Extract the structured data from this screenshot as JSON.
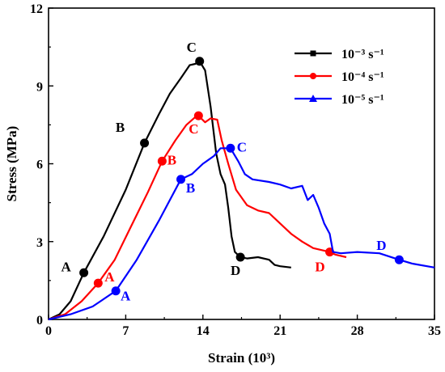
{
  "chart_data": {
    "type": "line",
    "xlabel": "Strain (10³)",
    "ylabel": "Stress (MPa)",
    "xlim": [
      0,
      35
    ],
    "ylim": [
      0,
      12
    ],
    "x_ticks": [
      "0",
      "7",
      "14",
      "21",
      "28",
      "35"
    ],
    "y_ticks": [
      "0",
      "3",
      "6",
      "9",
      "12"
    ],
    "grid": false,
    "legend_position": "top-right",
    "series": [
      {
        "name": "10⁻³ s⁻¹",
        "color": "#000000",
        "marker": "square",
        "points": [
          [
            0,
            0
          ],
          [
            1,
            0.2
          ],
          [
            2,
            0.7
          ],
          [
            3.2,
            1.8
          ],
          [
            5,
            3.2
          ],
          [
            7,
            5.0
          ],
          [
            8.7,
            6.8
          ],
          [
            10,
            7.9
          ],
          [
            11,
            8.7
          ],
          [
            12,
            9.3
          ],
          [
            12.8,
            9.8
          ],
          [
            13.3,
            9.85
          ],
          [
            13.7,
            9.95
          ],
          [
            14.2,
            9.6
          ],
          [
            14.7,
            8.2
          ],
          [
            15.2,
            6.4
          ],
          [
            15.6,
            5.6
          ],
          [
            16.0,
            5.2
          ],
          [
            16.3,
            4.3
          ],
          [
            16.6,
            3.2
          ],
          [
            16.9,
            2.6
          ],
          [
            17.4,
            2.4
          ],
          [
            18,
            2.35
          ],
          [
            19,
            2.4
          ],
          [
            20,
            2.3
          ],
          [
            20.5,
            2.1
          ],
          [
            21,
            2.05
          ],
          [
            22,
            2.0
          ]
        ],
        "markers": [
          {
            "label": "A",
            "x": 3.2,
            "y": 1.8
          },
          {
            "label": "B",
            "x": 8.7,
            "y": 6.8
          },
          {
            "label": "C",
            "x": 13.7,
            "y": 9.95
          },
          {
            "label": "D",
            "x": 17.4,
            "y": 2.4
          }
        ]
      },
      {
        "name": "10⁻⁴ s⁻¹",
        "color": "#ff0000",
        "marker": "circle",
        "points": [
          [
            0,
            0
          ],
          [
            1.5,
            0.2
          ],
          [
            3,
            0.7
          ],
          [
            4.5,
            1.4
          ],
          [
            6,
            2.3
          ],
          [
            7.5,
            3.6
          ],
          [
            9,
            4.9
          ],
          [
            10.3,
            6.1
          ],
          [
            11.5,
            6.9
          ],
          [
            12.5,
            7.5
          ],
          [
            13.3,
            7.8
          ],
          [
            13.6,
            7.85
          ],
          [
            14.2,
            7.6
          ],
          [
            14.7,
            7.75
          ],
          [
            15.3,
            7.7
          ],
          [
            15.7,
            6.9
          ],
          [
            16.3,
            6.0
          ],
          [
            17,
            5.0
          ],
          [
            18,
            4.4
          ],
          [
            19,
            4.2
          ],
          [
            20,
            4.1
          ],
          [
            21,
            3.7
          ],
          [
            22,
            3.3
          ],
          [
            23,
            3.0
          ],
          [
            24,
            2.75
          ],
          [
            25.5,
            2.6
          ],
          [
            26,
            2.5
          ],
          [
            27,
            2.4
          ]
        ],
        "markers": [
          {
            "label": "A",
            "x": 4.5,
            "y": 1.4
          },
          {
            "label": "B",
            "x": 10.3,
            "y": 6.1
          },
          {
            "label": "C",
            "x": 13.6,
            "y": 7.85
          },
          {
            "label": "D",
            "x": 25.5,
            "y": 2.6
          }
        ]
      },
      {
        "name": "10⁻⁵ s⁻¹",
        "color": "#0000ff",
        "marker": "triangle",
        "points": [
          [
            0,
            0
          ],
          [
            2,
            0.2
          ],
          [
            4,
            0.5
          ],
          [
            6.1,
            1.1
          ],
          [
            8,
            2.3
          ],
          [
            10,
            3.8
          ],
          [
            12,
            5.4
          ],
          [
            13,
            5.6
          ],
          [
            14,
            6.0
          ],
          [
            15,
            6.3
          ],
          [
            15.6,
            6.6
          ],
          [
            16.5,
            6.6
          ],
          [
            17.2,
            6.1
          ],
          [
            17.8,
            5.6
          ],
          [
            18.5,
            5.4
          ],
          [
            20,
            5.3
          ],
          [
            21,
            5.2
          ],
          [
            22,
            5.05
          ],
          [
            23,
            5.15
          ],
          [
            23.5,
            4.6
          ],
          [
            24,
            4.8
          ],
          [
            24.5,
            4.3
          ],
          [
            25,
            3.7
          ],
          [
            25.5,
            3.3
          ],
          [
            25.8,
            2.6
          ],
          [
            26.5,
            2.55
          ],
          [
            28,
            2.6
          ],
          [
            30,
            2.55
          ],
          [
            31.8,
            2.3
          ],
          [
            33,
            2.15
          ],
          [
            35,
            2.0
          ]
        ],
        "markers": [
          {
            "label": "A",
            "x": 6.1,
            "y": 1.1
          },
          {
            "label": "B",
            "x": 12,
            "y": 5.4
          },
          {
            "label": "C",
            "x": 16.5,
            "y": 6.6
          },
          {
            "label": "D",
            "x": 31.8,
            "y": 2.3
          }
        ]
      }
    ]
  }
}
